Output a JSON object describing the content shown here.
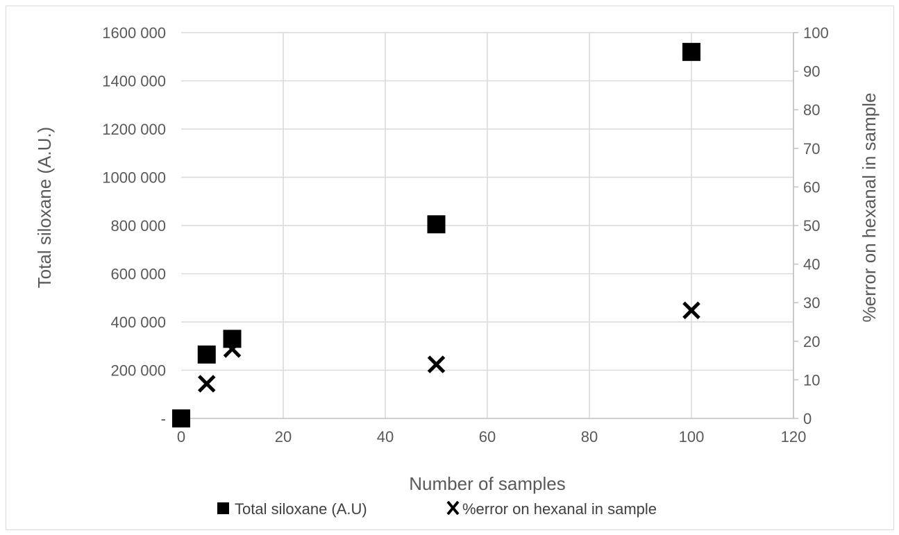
{
  "chart_data": {
    "type": "scatter",
    "xlabel": "Number  of samples",
    "ylabel": "Total siloxane (A.U.)",
    "y2label": "%error on hexanal in sample",
    "xlim": [
      0,
      120
    ],
    "ylim": [
      0,
      1600000
    ],
    "y2lim": [
      0,
      100
    ],
    "x_ticks": [
      "0",
      "20",
      "40",
      "60",
      "80",
      "100",
      "120"
    ],
    "y_ticks": [
      "-",
      "200 000",
      "400 000",
      "600 000",
      "800 000",
      "1000 000",
      "1200 000",
      "1400 000",
      "1600 000"
    ],
    "y2_ticks": [
      "0",
      "10",
      "20",
      "30",
      "40",
      "50",
      "60",
      "70",
      "80",
      "90",
      "100"
    ],
    "grid": true,
    "legend_position": "bottom",
    "series": [
      {
        "name": "Total siloxane (A.U)",
        "axis": "left",
        "marker": "square",
        "color": "#000000",
        "points": [
          {
            "x": 0,
            "y": 0
          },
          {
            "x": 5,
            "y": 265000
          },
          {
            "x": 10,
            "y": 330000
          },
          {
            "x": 50,
            "y": 805000
          },
          {
            "x": 100,
            "y": 1520000
          }
        ]
      },
      {
        "name": "%error on hexanal in sample",
        "axis": "right",
        "marker": "x",
        "color": "#000000",
        "points": [
          {
            "x": 5,
            "y": 9
          },
          {
            "x": 10,
            "y": 18
          },
          {
            "x": 50,
            "y": 14
          },
          {
            "x": 100,
            "y": 28
          }
        ]
      }
    ]
  }
}
